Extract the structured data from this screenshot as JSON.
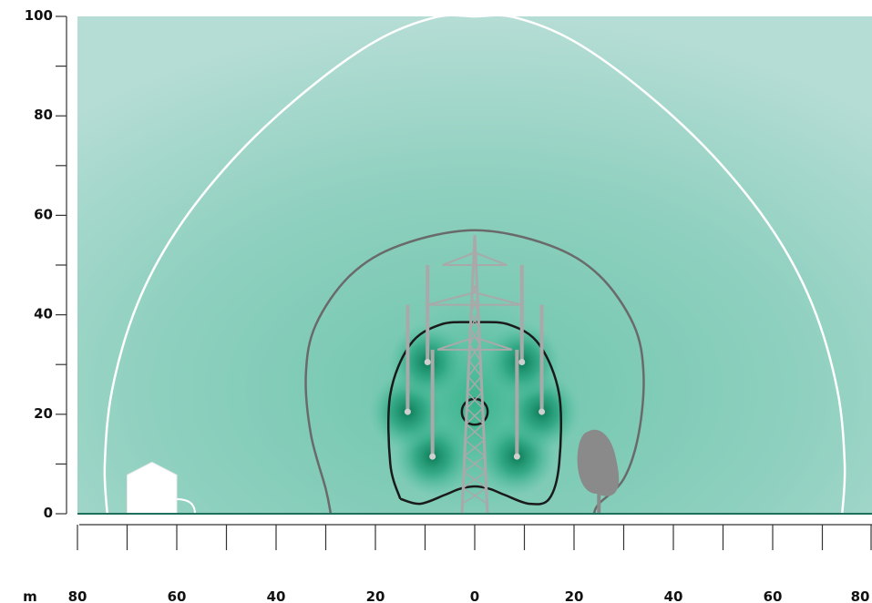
{
  "colors": {
    "field_strong": "#0b7a56",
    "field_mid": "#4fbf9f",
    "field_weak": "#a7d8ca",
    "contour_outer": "#ffffff",
    "contour_mid": "#6a6a6a",
    "contour_inner": "#1a1a1a",
    "tower": "#a9a9a9",
    "tree": "#8a8a8a",
    "house": "#ffffff",
    "axis": "#333333"
  },
  "icons": {
    "tower": "transmission-tower-icon",
    "house": "house-icon",
    "tree": "tree-icon"
  },
  "chart_data": {
    "type": "heatmap",
    "x_unit_label": "m",
    "xlim": [
      -80,
      80
    ],
    "ylim": [
      0,
      100
    ],
    "x_ticks": [
      {
        "value": -80,
        "label": "80"
      },
      {
        "value": -60,
        "label": "60"
      },
      {
        "value": -40,
        "label": "40"
      },
      {
        "value": -20,
        "label": "20"
      },
      {
        "value": 0,
        "label": "0"
      },
      {
        "value": 20,
        "label": "20"
      },
      {
        "value": 40,
        "label": "40"
      },
      {
        "value": 60,
        "label": "60"
      },
      {
        "value": 80,
        "label": "80"
      }
    ],
    "x_minor_step": 10,
    "y_ticks": [
      {
        "value": 0,
        "label": "0"
      },
      {
        "value": 20,
        "label": "20"
      },
      {
        "value": 40,
        "label": "40"
      },
      {
        "value": 60,
        "label": "60"
      },
      {
        "value": 80,
        "label": "80"
      },
      {
        "value": 100,
        "label": "100"
      }
    ],
    "y_minor_step": 10,
    "grid": false,
    "tower_x": 0,
    "tower_height": 56,
    "conductors": [
      {
        "x": -8.5,
        "y": 11.5
      },
      {
        "x": 8.5,
        "y": 11.5
      },
      {
        "x": -13.5,
        "y": 20.5
      },
      {
        "x": 13.5,
        "y": 20.5
      },
      {
        "x": -9.5,
        "y": 30.5
      },
      {
        "x": 9.5,
        "y": 30.5
      }
    ],
    "house_x_range": [
      -70,
      -60
    ],
    "house_height": 10,
    "tree_x": 25,
    "tree_height": 17,
    "contours": [
      {
        "level": "outer",
        "points": [
          [
            -74,
            0
          ],
          [
            -74.5,
            10
          ],
          [
            -73,
            25
          ],
          [
            -68,
            42
          ],
          [
            -60,
            57
          ],
          [
            -48,
            72
          ],
          [
            -34,
            85
          ],
          [
            -20,
            95
          ],
          [
            -8,
            99.8
          ],
          [
            0,
            100
          ],
          [
            8,
            99.8
          ],
          [
            20,
            95
          ],
          [
            34,
            85
          ],
          [
            48,
            72
          ],
          [
            60,
            57
          ],
          [
            68,
            42
          ],
          [
            73,
            25
          ],
          [
            74.5,
            10
          ],
          [
            74,
            0
          ]
        ]
      },
      {
        "level": "middle",
        "points": [
          [
            -29,
            0
          ],
          [
            -30,
            5
          ],
          [
            -33,
            16
          ],
          [
            -34,
            28
          ],
          [
            -32,
            38
          ],
          [
            -25,
            48
          ],
          [
            -15,
            54
          ],
          [
            0,
            57
          ],
          [
            15,
            54
          ],
          [
            25,
            48
          ],
          [
            32,
            38
          ],
          [
            34,
            28
          ],
          [
            33,
            16
          ],
          [
            30,
            7
          ],
          [
            25,
            2
          ],
          [
            24,
            0
          ]
        ]
      },
      {
        "level": "inner",
        "points": [
          [
            -15,
            3
          ],
          [
            -17,
            10
          ],
          [
            -17,
            24
          ],
          [
            -13,
            34
          ],
          [
            -7,
            38
          ],
          [
            0,
            38.5
          ],
          [
            7,
            38
          ],
          [
            13,
            34
          ],
          [
            17,
            24
          ],
          [
            17,
            10
          ],
          [
            15,
            3
          ],
          [
            11,
            2
          ],
          [
            6,
            3.8
          ],
          [
            3,
            5
          ],
          [
            0,
            5.5
          ],
          [
            -3,
            5
          ],
          [
            -6,
            3.8
          ],
          [
            -11,
            2
          ],
          [
            -15,
            3
          ]
        ]
      },
      {
        "level": "core",
        "circle": {
          "cx": 0,
          "cy": 20.5,
          "rx": 2.6,
          "ry": 2.6
        }
      }
    ]
  }
}
